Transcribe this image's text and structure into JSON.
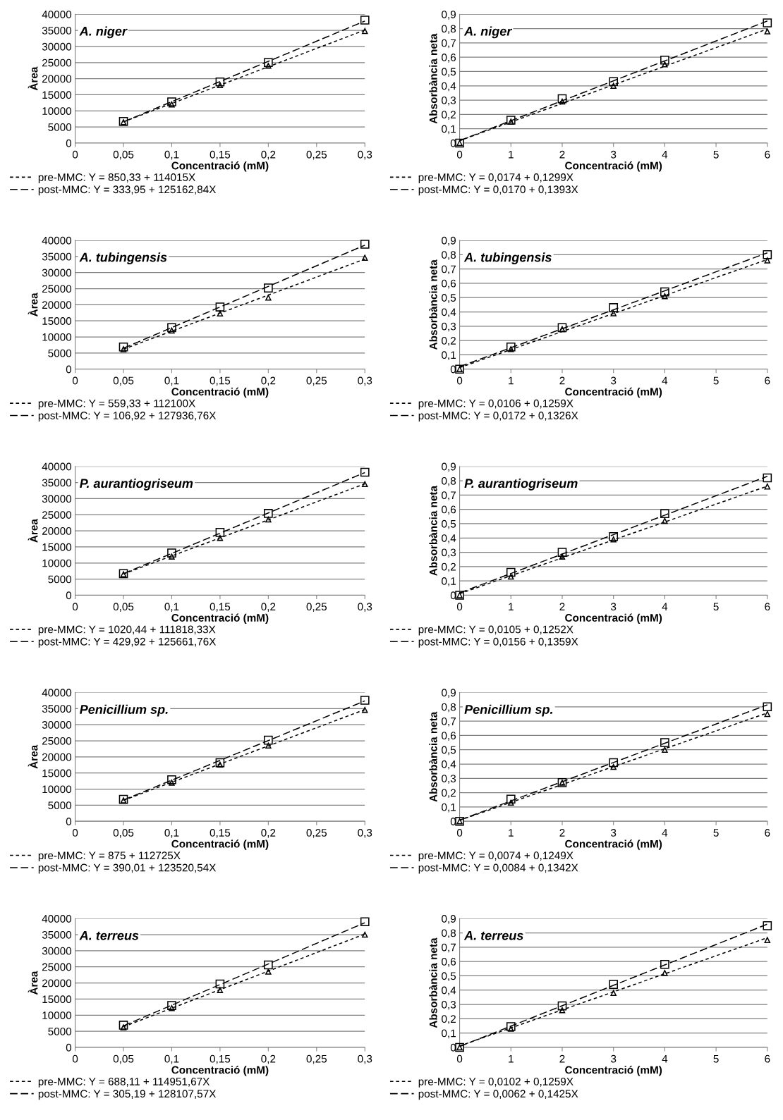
{
  "chart_data": [
    {
      "type": "scatter",
      "title": "A. niger",
      "xlabel": "Concentració (mM)",
      "ylabel": "Àrea",
      "xlim": [
        0,
        0.3
      ],
      "ylim": [
        0,
        40000
      ],
      "xticks": [
        0,
        {
          "value": 0.05,
          "label": "0,05"
        },
        {
          "value": 0.1,
          "label": "0,1"
        },
        {
          "value": 0.15,
          "label": "0,15"
        },
        {
          "value": 0.2,
          "label": "0,2"
        },
        {
          "value": 0.25,
          "label": "0,25"
        },
        {
          "value": 0.3,
          "label": "0,3"
        }
      ],
      "yticks": [
        0,
        5000,
        10000,
        15000,
        20000,
        25000,
        30000,
        35000,
        40000
      ],
      "grid": "y",
      "legend": "bottom",
      "series": [
        {
          "type": "scatter",
          "marker": "triangle",
          "color": "#000000",
          "x": [
            0.05,
            0.1,
            0.15,
            0.2,
            0.3
          ],
          "values": [
            6500,
            12000,
            18000,
            24000,
            34800
          ]
        },
        {
          "type": "scatter",
          "marker": "square",
          "color": "#000000",
          "x": [
            0.05,
            0.1,
            0.15,
            0.2,
            0.3
          ],
          "values": [
            6700,
            12800,
            19000,
            25000,
            38200
          ]
        },
        {
          "type": "line",
          "name": "pre-MMC: Y = 850,33 + 114015X",
          "line_style": "dotted",
          "color": "#000000",
          "x": [
            0.05,
            0.3
          ],
          "values": [
            6600,
            35100
          ]
        },
        {
          "type": "line",
          "name": "post-MMC: Y = 333,95 + 125162,84X",
          "line_style": "dashed",
          "color": "#000000",
          "x": [
            0.05,
            0.3
          ],
          "values": [
            6600,
            37900
          ]
        }
      ]
    },
    {
      "type": "scatter",
      "title": "A. niger",
      "xlabel": "Concentració (mM)",
      "ylabel": "Absorbància neta",
      "xlim": [
        0,
        6
      ],
      "ylim": [
        0,
        0.9
      ],
      "xticks": [
        0,
        1,
        2,
        3,
        4,
        5,
        6
      ],
      "yticks": [
        0,
        {
          "value": 0.1,
          "label": "0,1"
        },
        {
          "value": 0.2,
          "label": "0,2"
        },
        {
          "value": 0.3,
          "label": "0,3"
        },
        {
          "value": 0.4,
          "label": "0,4"
        },
        {
          "value": 0.5,
          "label": "0,5"
        },
        {
          "value": 0.6,
          "label": "0,6"
        },
        {
          "value": 0.7,
          "label": "0,7"
        },
        {
          "value": 0.8,
          "label": "0,8"
        },
        {
          "value": 0.9,
          "label": "0,9"
        }
      ],
      "grid": "y",
      "legend": "bottom",
      "series": [
        {
          "type": "scatter",
          "marker": "triangle",
          "color": "#000000",
          "x": [
            0,
            1,
            2,
            3,
            4,
            6
          ],
          "values": [
            0,
            0.15,
            0.29,
            0.4,
            0.55,
            0.78
          ]
        },
        {
          "type": "scatter",
          "marker": "square",
          "color": "#000000",
          "x": [
            0,
            1,
            2,
            3,
            4,
            6
          ],
          "values": [
            0,
            0.16,
            0.31,
            0.43,
            0.58,
            0.84
          ]
        },
        {
          "type": "line",
          "name": "pre-MMC: Y = 0,0174 + 0,1299X",
          "line_style": "dotted",
          "color": "#000000",
          "x": [
            0,
            6
          ],
          "values": [
            0.017,
            0.797
          ]
        },
        {
          "type": "line",
          "name": "post-MMC: Y = 0,0170 + 0,1393X",
          "line_style": "dashed",
          "color": "#000000",
          "x": [
            0,
            6
          ],
          "values": [
            0.017,
            0.853
          ]
        }
      ]
    },
    {
      "type": "scatter",
      "title": "A. tubingensis",
      "xlabel": "Concentració (mM)",
      "ylabel": "Àrea",
      "xlim": [
        0,
        0.3
      ],
      "ylim": [
        0,
        40000
      ],
      "xticks": [
        0,
        {
          "value": 0.05,
          "label": "0,05"
        },
        {
          "value": 0.1,
          "label": "0,1"
        },
        {
          "value": 0.15,
          "label": "0,15"
        },
        {
          "value": 0.2,
          "label": "0,2"
        },
        {
          "value": 0.25,
          "label": "0,25"
        },
        {
          "value": 0.3,
          "label": "0,3"
        }
      ],
      "yticks": [
        0,
        5000,
        10000,
        15000,
        20000,
        25000,
        30000,
        35000,
        40000
      ],
      "grid": "y",
      "legend": "bottom",
      "series": [
        {
          "type": "scatter",
          "marker": "triangle",
          "color": "#000000",
          "x": [
            0.05,
            0.1,
            0.15,
            0.2,
            0.3
          ],
          "values": [
            6200,
            12000,
            17300,
            22200,
            34600
          ]
        },
        {
          "type": "scatter",
          "marker": "square",
          "color": "#000000",
          "x": [
            0.05,
            0.1,
            0.15,
            0.2,
            0.3
          ],
          "values": [
            6900,
            12900,
            19300,
            25200,
            38800
          ]
        },
        {
          "type": "line",
          "name": "pre-MMC: Y = 559,33 + 112100X",
          "line_style": "dotted",
          "color": "#000000",
          "x": [
            0.05,
            0.3
          ],
          "values": [
            6200,
            34200
          ]
        },
        {
          "type": "line",
          "name": "post-MMC: Y = 106,92 + 127936,76X",
          "line_style": "dashed",
          "color": "#000000",
          "x": [
            0.05,
            0.3
          ],
          "values": [
            6500,
            38500
          ]
        }
      ]
    },
    {
      "type": "scatter",
      "title": "A. tubingensis",
      "xlabel": "Concentració (mM)",
      "ylabel": "Absorbància neta",
      "xlim": [
        0,
        6
      ],
      "ylim": [
        0,
        0.9
      ],
      "xticks": [
        0,
        1,
        2,
        3,
        4,
        5,
        6
      ],
      "yticks": [
        0,
        {
          "value": 0.1,
          "label": "0,1"
        },
        {
          "value": 0.2,
          "label": "0,2"
        },
        {
          "value": 0.3,
          "label": "0,3"
        },
        {
          "value": 0.4,
          "label": "0,4"
        },
        {
          "value": 0.5,
          "label": "0,5"
        },
        {
          "value": 0.6,
          "label": "0,6"
        },
        {
          "value": 0.7,
          "label": "0,7"
        },
        {
          "value": 0.8,
          "label": "0,8"
        },
        {
          "value": 0.9,
          "label": "0,9"
        }
      ],
      "grid": "y",
      "legend": "bottom",
      "series": [
        {
          "type": "scatter",
          "marker": "triangle",
          "color": "#000000",
          "x": [
            0,
            1,
            2,
            3,
            4,
            6
          ],
          "values": [
            0,
            0.14,
            0.28,
            0.39,
            0.51,
            0.76
          ]
        },
        {
          "type": "scatter",
          "marker": "square",
          "color": "#000000",
          "x": [
            0,
            1,
            2,
            3,
            4,
            6
          ],
          "values": [
            0,
            0.155,
            0.29,
            0.43,
            0.54,
            0.8
          ]
        },
        {
          "type": "line",
          "name": "pre-MMC: Y = 0,0106 + 0,1259X",
          "line_style": "dotted",
          "color": "#000000",
          "x": [
            0,
            6
          ],
          "values": [
            0.011,
            0.766
          ]
        },
        {
          "type": "line",
          "name": "post-MMC: Y = 0,0172 + 0,1326X",
          "line_style": "dashed",
          "color": "#000000",
          "x": [
            0,
            6
          ],
          "values": [
            0.017,
            0.813
          ]
        }
      ]
    },
    {
      "type": "scatter",
      "title": "P. aurantiogriseum",
      "xlabel": "Concentració (mM)",
      "ylabel": "Àrea",
      "xlim": [
        0,
        0.3
      ],
      "ylim": [
        0,
        40000
      ],
      "xticks": [
        0,
        {
          "value": 0.05,
          "label": "0,05"
        },
        {
          "value": 0.1,
          "label": "0,1"
        },
        {
          "value": 0.15,
          "label": "0,15"
        },
        {
          "value": 0.2,
          "label": "0,2"
        },
        {
          "value": 0.25,
          "label": "0,25"
        },
        {
          "value": 0.3,
          "label": "0,3"
        }
      ],
      "yticks": [
        0,
        5000,
        10000,
        15000,
        20000,
        25000,
        30000,
        35000,
        40000
      ],
      "grid": "y",
      "legend": "bottom",
      "series": [
        {
          "type": "scatter",
          "marker": "triangle",
          "color": "#000000",
          "x": [
            0.05,
            0.1,
            0.15,
            0.2,
            0.3
          ],
          "values": [
            6500,
            12000,
            17800,
            23500,
            34500
          ]
        },
        {
          "type": "scatter",
          "marker": "square",
          "color": "#000000",
          "x": [
            0.05,
            0.1,
            0.15,
            0.2,
            0.3
          ],
          "values": [
            6700,
            13100,
            19500,
            25400,
            38200
          ]
        },
        {
          "type": "line",
          "name": "pre-MMC: Y = 1020,44 + 111818,33X",
          "line_style": "dotted",
          "color": "#000000",
          "x": [
            0.05,
            0.3
          ],
          "values": [
            6600,
            34600
          ]
        },
        {
          "type": "line",
          "name": "post-MMC: Y = 429,92 + 125661,76X",
          "line_style": "dashed",
          "color": "#000000",
          "x": [
            0.05,
            0.3
          ],
          "values": [
            6700,
            38100
          ]
        }
      ]
    },
    {
      "type": "scatter",
      "title": "P. aurantiogriseum",
      "xlabel": "Concentració (mM)",
      "ylabel": "Absorbància neta",
      "xlim": [
        0,
        6
      ],
      "ylim": [
        0,
        0.9
      ],
      "xticks": [
        0,
        1,
        2,
        3,
        4,
        5,
        6
      ],
      "yticks": [
        0,
        {
          "value": 0.1,
          "label": "0,1"
        },
        {
          "value": 0.2,
          "label": "0,2"
        },
        {
          "value": 0.3,
          "label": "0,3"
        },
        {
          "value": 0.4,
          "label": "0,4"
        },
        {
          "value": 0.5,
          "label": "0,5"
        },
        {
          "value": 0.6,
          "label": "0,6"
        },
        {
          "value": 0.7,
          "label": "0,7"
        },
        {
          "value": 0.8,
          "label": "0,8"
        },
        {
          "value": 0.9,
          "label": "0,9"
        }
      ],
      "grid": "y",
      "legend": "bottom",
      "series": [
        {
          "type": "scatter",
          "marker": "triangle",
          "color": "#000000",
          "x": [
            0,
            1,
            2,
            3,
            4,
            6
          ],
          "values": [
            0,
            0.13,
            0.27,
            0.39,
            0.52,
            0.76
          ]
        },
        {
          "type": "scatter",
          "marker": "square",
          "color": "#000000",
          "x": [
            0,
            1,
            2,
            3,
            4,
            6
          ],
          "values": [
            0,
            0.16,
            0.3,
            0.41,
            0.57,
            0.82
          ]
        },
        {
          "type": "line",
          "name": "pre-MMC: Y = 0,0105 + 0,1252X",
          "line_style": "dotted",
          "color": "#000000",
          "x": [
            0,
            6
          ],
          "values": [
            0.011,
            0.762
          ]
        },
        {
          "type": "line",
          "name": "post-MMC: Y = 0,0156 + 0,1359X",
          "line_style": "dashed",
          "color": "#000000",
          "x": [
            0,
            6
          ],
          "values": [
            0.016,
            0.831
          ]
        }
      ]
    },
    {
      "type": "scatter",
      "title": "Penicillium sp.",
      "xlabel": "Concentració (mM)",
      "ylabel": "Àrea",
      "xlim": [
        0,
        0.3
      ],
      "ylim": [
        0,
        40000
      ],
      "xticks": [
        0,
        {
          "value": 0.05,
          "label": "0,05"
        },
        {
          "value": 0.1,
          "label": "0,1"
        },
        {
          "value": 0.15,
          "label": "0,15"
        },
        {
          "value": 0.2,
          "label": "0,2"
        },
        {
          "value": 0.25,
          "label": "0,25"
        },
        {
          "value": 0.3,
          "label": "0,3"
        }
      ],
      "yticks": [
        0,
        5000,
        10000,
        15000,
        20000,
        25000,
        30000,
        35000,
        40000
      ],
      "grid": "y",
      "legend": "bottom",
      "series": [
        {
          "type": "scatter",
          "marker": "triangle",
          "color": "#000000",
          "x": [
            0.05,
            0.1,
            0.15,
            0.2,
            0.3
          ],
          "values": [
            6500,
            12000,
            17600,
            23500,
            34600
          ]
        },
        {
          "type": "scatter",
          "marker": "square",
          "color": "#000000",
          "x": [
            0.05,
            0.1,
            0.15,
            0.2,
            0.3
          ],
          "values": [
            6800,
            12900,
            18200,
            25200,
            37600
          ]
        },
        {
          "type": "line",
          "name": "pre-MMC: Y = 875 + 112725X",
          "line_style": "dotted",
          "color": "#000000",
          "x": [
            0.05,
            0.3
          ],
          "values": [
            6500,
            34700
          ]
        },
        {
          "type": "line",
          "name": "post-MMC: Y = 390,01 + 123520,54X",
          "line_style": "dashed",
          "color": "#000000",
          "x": [
            0.05,
            0.3
          ],
          "values": [
            6600,
            37400
          ]
        }
      ]
    },
    {
      "type": "scatter",
      "title": "Penicillium sp.",
      "xlabel": "Concentració (mM)",
      "ylabel": "Absorbància neta",
      "xlim": [
        0,
        6
      ],
      "ylim": [
        0,
        0.9
      ],
      "xticks": [
        0,
        1,
        2,
        3,
        4,
        5,
        6
      ],
      "yticks": [
        0,
        {
          "value": 0.1,
          "label": "0,1"
        },
        {
          "value": 0.2,
          "label": "0,2"
        },
        {
          "value": 0.3,
          "label": "0,3"
        },
        {
          "value": 0.4,
          "label": "0,4"
        },
        {
          "value": 0.5,
          "label": "0,5"
        },
        {
          "value": 0.6,
          "label": "0,6"
        },
        {
          "value": 0.7,
          "label": "0,7"
        },
        {
          "value": 0.8,
          "label": "0,8"
        },
        {
          "value": 0.9,
          "label": "0,9"
        }
      ],
      "grid": "y",
      "legend": "bottom",
      "series": [
        {
          "type": "scatter",
          "marker": "triangle",
          "color": "#000000",
          "x": [
            0,
            1,
            2,
            3,
            4,
            6
          ],
          "values": [
            0,
            0.13,
            0.27,
            0.38,
            0.5,
            0.75
          ]
        },
        {
          "type": "scatter",
          "marker": "square",
          "color": "#000000",
          "x": [
            0,
            1,
            2,
            3,
            4,
            6
          ],
          "values": [
            0,
            0.155,
            0.27,
            0.41,
            0.55,
            0.8
          ]
        },
        {
          "type": "line",
          "name": "pre-MMC: Y = 0,0074 + 0,1249X",
          "line_style": "dotted",
          "color": "#000000",
          "x": [
            0,
            6
          ],
          "values": [
            0.007,
            0.757
          ]
        },
        {
          "type": "line",
          "name": "post-MMC: Y = 0,0084 + 0,1342X",
          "line_style": "dashed",
          "color": "#000000",
          "x": [
            0,
            6
          ],
          "values": [
            0.008,
            0.814
          ]
        }
      ]
    },
    {
      "type": "scatter",
      "title": "A. terreus",
      "xlabel": "Concentració (mM)",
      "ylabel": "Àrea",
      "xlim": [
        0,
        0.3
      ],
      "ylim": [
        0,
        40000
      ],
      "xticks": [
        0,
        {
          "value": 0.05,
          "label": "0,05"
        },
        {
          "value": 0.1,
          "label": "0,1"
        },
        {
          "value": 0.15,
          "label": "0,15"
        },
        {
          "value": 0.2,
          "label": "0,2"
        },
        {
          "value": 0.25,
          "label": "0,25"
        },
        {
          "value": 0.3,
          "label": "0,3"
        }
      ],
      "yticks": [
        0,
        5000,
        10000,
        15000,
        20000,
        25000,
        30000,
        35000,
        40000
      ],
      "grid": "y",
      "legend": "bottom",
      "series": [
        {
          "type": "scatter",
          "marker": "triangle",
          "color": "#000000",
          "x": [
            0.05,
            0.1,
            0.15,
            0.2,
            0.3
          ],
          "values": [
            6200,
            12200,
            17800,
            23500,
            35000
          ]
        },
        {
          "type": "scatter",
          "marker": "square",
          "color": "#000000",
          "x": [
            0.05,
            0.1,
            0.15,
            0.2,
            0.3
          ],
          "values": [
            6900,
            13000,
            19700,
            25600,
            39000
          ]
        },
        {
          "type": "line",
          "name": "pre-MMC: Y = 688,11 + 114951,67X",
          "line_style": "dotted",
          "color": "#000000",
          "x": [
            0.05,
            0.3
          ],
          "values": [
            6400,
            35200
          ]
        },
        {
          "type": "line",
          "name": "post-MMC: Y = 305,19 + 128107,57X",
          "line_style": "dashed",
          "color": "#000000",
          "x": [
            0.05,
            0.3
          ],
          "values": [
            6700,
            38700
          ]
        }
      ]
    },
    {
      "type": "scatter",
      "title": "A. terreus",
      "xlabel": "Concentració (mM)",
      "ylabel": "Absorbància neta",
      "xlim": [
        0,
        6
      ],
      "ylim": [
        0,
        0.9
      ],
      "xticks": [
        0,
        1,
        2,
        3,
        4,
        5,
        6
      ],
      "yticks": [
        0,
        {
          "value": 0.1,
          "label": "0,1"
        },
        {
          "value": 0.2,
          "label": "0,2"
        },
        {
          "value": 0.3,
          "label": "0,3"
        },
        {
          "value": 0.4,
          "label": "0,4"
        },
        {
          "value": 0.5,
          "label": "0,5"
        },
        {
          "value": 0.6,
          "label": "0,6"
        },
        {
          "value": 0.7,
          "label": "0,7"
        },
        {
          "value": 0.8,
          "label": "0,8"
        },
        {
          "value": 0.9,
          "label": "0,9"
        }
      ],
      "grid": "y",
      "legend": "bottom",
      "series": [
        {
          "type": "scatter",
          "marker": "triangle",
          "color": "#000000",
          "x": [
            0,
            1,
            2,
            3,
            4,
            6
          ],
          "values": [
            0,
            0.13,
            0.26,
            0.38,
            0.52,
            0.75
          ]
        },
        {
          "type": "scatter",
          "marker": "square",
          "color": "#000000",
          "x": [
            0,
            1,
            2,
            3,
            4,
            6
          ],
          "values": [
            0,
            0.145,
            0.29,
            0.44,
            0.58,
            0.85
          ]
        },
        {
          "type": "line",
          "name": "pre-MMC: Y = 0,0102 + 0,1259X",
          "line_style": "dotted",
          "color": "#000000",
          "x": [
            0,
            6
          ],
          "values": [
            0.01,
            0.766
          ]
        },
        {
          "type": "line",
          "name": "post-MMC: Y = 0,0062 + 0,1425X",
          "line_style": "dashed",
          "color": "#000000",
          "x": [
            0,
            6
          ],
          "values": [
            0.006,
            0.861
          ]
        }
      ]
    }
  ]
}
